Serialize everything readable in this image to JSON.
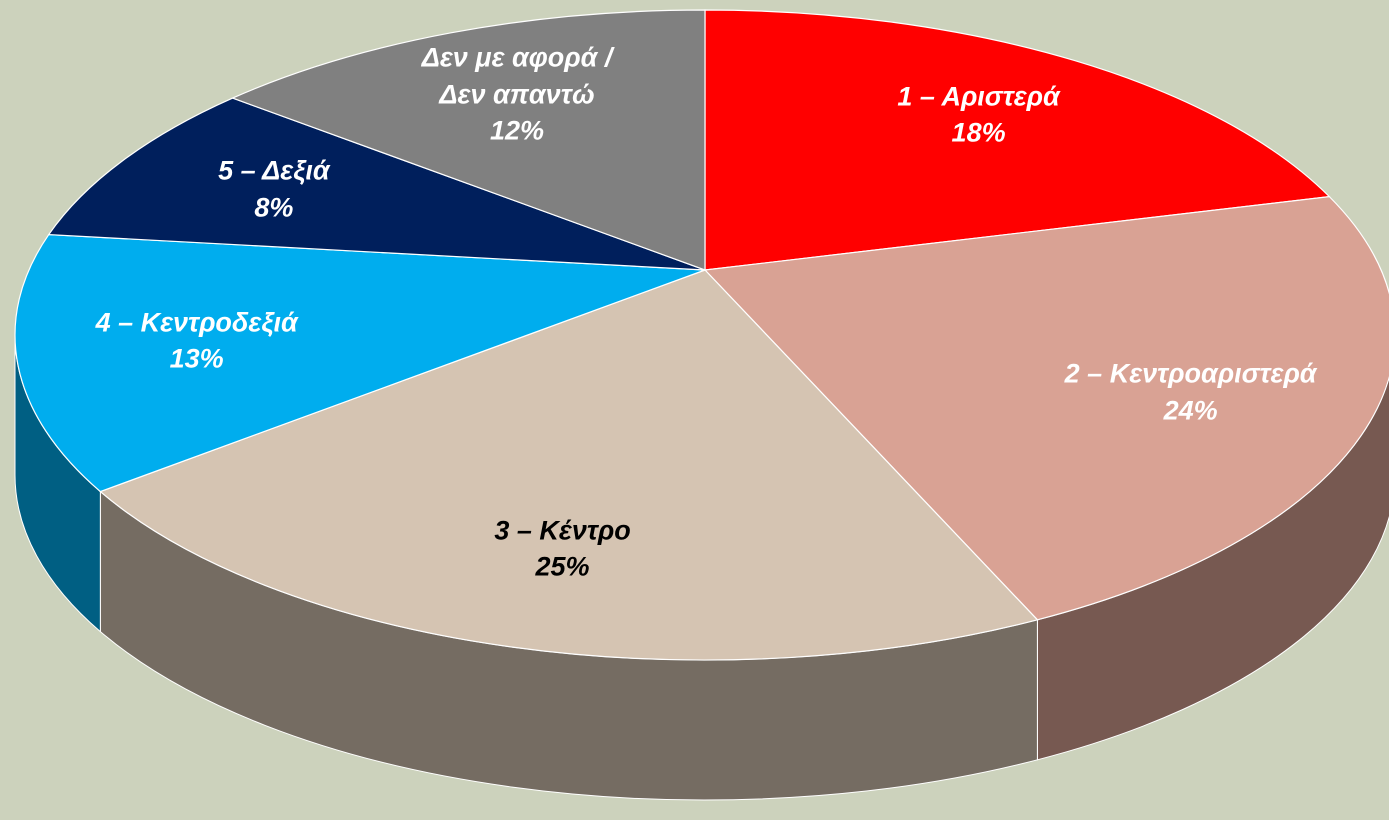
{
  "chart_data": {
    "type": "pie",
    "categories": [
      "1 – Αριστερά",
      "2 – Κεντροαριστερά",
      "3 – Κέντρο",
      "4 – Κεντροδεξιά",
      "5 – Δεξιά",
      "Δεν με αφορά / Δεν απαντώ"
    ],
    "values": [
      18,
      24,
      25,
      13,
      8,
      12
    ],
    "value_labels": [
      "18%",
      "24%",
      "25%",
      "13%",
      "8%",
      "12%"
    ],
    "colors": [
      "#ff0000",
      "#d9a294",
      "#d5c4b2",
      "#00adee",
      "#001f5c",
      "#808080"
    ],
    "label_colors": [
      "#ffffff",
      "#ffffff",
      "#000000",
      "#ffffff",
      "#ffffff",
      "#ffffff"
    ]
  }
}
